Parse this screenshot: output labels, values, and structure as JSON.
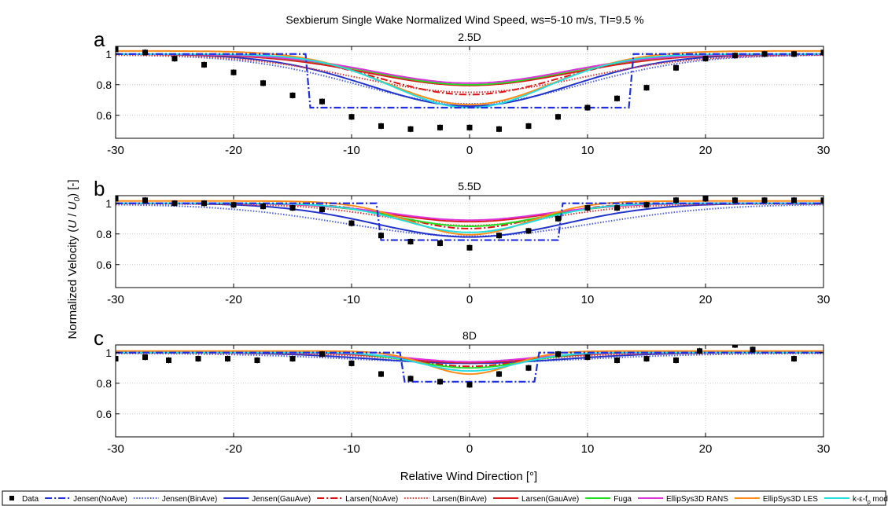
{
  "figure": {
    "title": "Sexbierum Single Wake Normalized Wind Speed, ws=5-10 m/s, TI=9.5 %",
    "ylabel_prefix": "Normalized Velocity (",
    "ylabel_u": "U",
    "ylabel_sep": " / ",
    "ylabel_u0": "U",
    "ylabel_u0_sub": "0",
    "ylabel_suffix": ") [-]",
    "xlabel": "Relative Wind Direction [°]"
  },
  "legend": [
    {
      "key": "data",
      "label": "Data",
      "color": "#000000",
      "style": "marker"
    },
    {
      "key": "jensen_noave",
      "label": "Jensen(NoAve)",
      "color": "#1f2fe0",
      "style": "dashdot"
    },
    {
      "key": "jensen_binave",
      "label": "Jensen(BinAve)",
      "color": "#4a5cf0",
      "style": "dotted"
    },
    {
      "key": "jensen_gauave",
      "label": "Jensen(GauAve)",
      "color": "#2233cc",
      "style": "solid"
    },
    {
      "key": "larsen_noave",
      "label": "Larsen(NoAve)",
      "color": "#dd1111",
      "style": "dashdot"
    },
    {
      "key": "larsen_binave",
      "label": "Larsen(BinAve)",
      "color": "#e83030",
      "style": "dotted"
    },
    {
      "key": "larsen_gauave",
      "label": "Larsen(GauAve)",
      "color": "#dd1a1a",
      "style": "solid"
    },
    {
      "key": "fuga",
      "label": "Fuga",
      "color": "#22dd22",
      "style": "solid"
    },
    {
      "key": "ellipsys_rans",
      "label": "EllipSys3D RANS",
      "color": "#dd33dd",
      "style": "solid"
    },
    {
      "key": "ellipsys_les",
      "label": "EllipSys3D LES",
      "color": "#ff8c1a",
      "style": "solid"
    },
    {
      "key": "keps",
      "label": "k-ε-f",
      "label_sub": "p",
      "label_tail": " model",
      "color": "#22dddd",
      "style": "solid"
    }
  ],
  "chart_data": [
    {
      "type": "line",
      "panel_letter": "a",
      "title": "2.5D",
      "xlim": [
        -30,
        30
      ],
      "ylim": [
        0.45,
        1.05
      ],
      "xticks": [
        -30,
        -20,
        -10,
        0,
        10,
        20,
        30
      ],
      "xtick_labels": [
        "-30",
        "-20",
        "-10",
        "0",
        "10",
        "20",
        "30"
      ],
      "yticks": [
        0.6,
        0.8,
        1.0
      ],
      "ytick_labels": [
        "0.6",
        "0.8",
        "1"
      ],
      "grid": true,
      "data_points": {
        "x": [
          -30,
          -27.5,
          -25,
          -22.5,
          -20,
          -17.5,
          -15,
          -12.5,
          -10,
          -7.5,
          -5,
          -2.5,
          0,
          2.5,
          5,
          7.5,
          10,
          12.5,
          15,
          17.5,
          20,
          22.5,
          25,
          27.5,
          30
        ],
        "y": [
          1.03,
          1.01,
          0.97,
          0.93,
          0.88,
          0.81,
          0.73,
          0.69,
          0.59,
          0.53,
          0.51,
          0.52,
          0.52,
          0.51,
          0.53,
          0.59,
          0.65,
          0.71,
          0.78,
          0.91,
          0.97,
          0.99,
          1.0,
          1.0,
          1.01
        ]
      },
      "step": {
        "base": 1.0,
        "deficit": 0.35,
        "half_width": 13.9
      },
      "series": [
        {
          "key": "jensen_binave",
          "base": 0.995,
          "deficit": 0.32,
          "width": 9.5
        },
        {
          "key": "jensen_gauave",
          "base": 1.0,
          "deficit": 0.34,
          "width": 8.5
        },
        {
          "key": "larsen_noave",
          "base": 1.0,
          "deficit": 0.265,
          "width": 7.5
        },
        {
          "key": "larsen_binave",
          "base": 0.995,
          "deficit": 0.245,
          "width": 9.5
        },
        {
          "key": "larsen_gauave",
          "base": 1.0,
          "deficit": 0.205,
          "width": 8.5
        },
        {
          "key": "fuga",
          "base": 1.0,
          "deficit": 0.2,
          "width": 8.0
        },
        {
          "key": "ellipsys_rans",
          "base": 1.0,
          "deficit": 0.19,
          "width": 8.0
        },
        {
          "key": "ellipsys_les",
          "base": 1.02,
          "deficit": 0.35,
          "width": 7.0
        },
        {
          "key": "keps",
          "base": 1.0,
          "deficit": 0.35,
          "width": 6.5
        }
      ]
    },
    {
      "type": "line",
      "panel_letter": "b",
      "title": "5.5D",
      "xlim": [
        -30,
        30
      ],
      "ylim": [
        0.45,
        1.05
      ],
      "xticks": [
        -30,
        -20,
        -10,
        0,
        10,
        20,
        30
      ],
      "xtick_labels": [
        "-30",
        "-20",
        "-10",
        "0",
        "10",
        "20",
        "30"
      ],
      "yticks": [
        0.6,
        0.8,
        1.0
      ],
      "ytick_labels": [
        "0.6",
        "0.8",
        "1"
      ],
      "grid": true,
      "data_points": {
        "x": [
          -30,
          -27.5,
          -25,
          -22.5,
          -20,
          -17.5,
          -15,
          -12.5,
          -10,
          -7.5,
          -5,
          -2.5,
          0,
          2.5,
          5,
          7.5,
          10,
          12.5,
          15,
          17.5,
          20,
          22.5,
          25,
          27.5,
          30
        ],
        "y": [
          1.03,
          1.02,
          1.0,
          1.0,
          0.99,
          0.98,
          0.97,
          0.96,
          0.87,
          0.79,
          0.75,
          0.74,
          0.71,
          0.79,
          0.82,
          0.9,
          0.97,
          0.97,
          0.99,
          1.02,
          1.03,
          1.02,
          1.02,
          1.02,
          1.02
        ]
      },
      "step": {
        "base": 1.0,
        "deficit": 0.24,
        "half_width": 7.9
      },
      "series": [
        {
          "key": "jensen_binave",
          "base": 0.995,
          "deficit": 0.21,
          "width": 10.5
        },
        {
          "key": "jensen_gauave",
          "base": 1.0,
          "deficit": 0.22,
          "width": 8.0
        },
        {
          "key": "larsen_noave",
          "base": 1.0,
          "deficit": 0.165,
          "width": 5.5
        },
        {
          "key": "larsen_binave",
          "base": 0.995,
          "deficit": 0.14,
          "width": 7.0
        },
        {
          "key": "larsen_gauave",
          "base": 1.0,
          "deficit": 0.12,
          "width": 6.5
        },
        {
          "key": "fuga",
          "base": 1.0,
          "deficit": 0.15,
          "width": 6.0
        },
        {
          "key": "ellipsys_rans",
          "base": 1.0,
          "deficit": 0.11,
          "width": 6.5
        },
        {
          "key": "ellipsys_les",
          "base": 1.015,
          "deficit": 0.22,
          "width": 5.0
        },
        {
          "key": "keps",
          "base": 1.0,
          "deficit": 0.19,
          "width": 5.5
        }
      ]
    },
    {
      "type": "line",
      "panel_letter": "c",
      "title": "8D",
      "xlim": [
        -30,
        30
      ],
      "ylim": [
        0.45,
        1.05
      ],
      "xticks": [
        -30,
        -20,
        -10,
        0,
        10,
        20,
        30
      ],
      "xtick_labels": [
        "-30",
        "-20",
        "-10",
        "0",
        "10",
        "20",
        "30"
      ],
      "yticks": [
        0.6,
        0.8,
        1.0
      ],
      "ytick_labels": [
        "0.6",
        "0.8",
        "1"
      ],
      "grid": true,
      "data_points": {
        "x": [
          -30,
          -27.5,
          -25.5,
          -23,
          -20.5,
          -18,
          -15,
          -12.5,
          -10,
          -7.5,
          -5,
          -2.5,
          0,
          2.5,
          5,
          7.5,
          10,
          12.5,
          15,
          17.5,
          19.5,
          22.5,
          24,
          27.5
        ],
        "y": [
          0.96,
          0.97,
          0.95,
          0.96,
          0.96,
          0.95,
          0.96,
          0.99,
          0.93,
          0.86,
          0.83,
          0.81,
          0.79,
          0.86,
          0.9,
          0.99,
          0.97,
          0.95,
          0.96,
          0.95,
          1.01,
          1.05,
          1.02,
          0.96
        ]
      },
      "step": {
        "base": 1.0,
        "deficit": 0.19,
        "half_width": 5.9
      },
      "series": [
        {
          "key": "jensen_binave",
          "base": 0.995,
          "deficit": 0.06,
          "width": 10.0
        },
        {
          "key": "jensen_gauave",
          "base": 1.0,
          "deficit": 0.07,
          "width": 8.0
        },
        {
          "key": "larsen_noave",
          "base": 1.0,
          "deficit": 0.09,
          "width": 4.5
        },
        {
          "key": "larsen_binave",
          "base": 0.995,
          "deficit": 0.06,
          "width": 6.0
        },
        {
          "key": "larsen_gauave",
          "base": 1.0,
          "deficit": 0.065,
          "width": 5.5
        },
        {
          "key": "fuga",
          "base": 1.0,
          "deficit": 0.1,
          "width": 4.5
        },
        {
          "key": "ellipsys_rans",
          "base": 1.0,
          "deficit": 0.06,
          "width": 5.0
        },
        {
          "key": "ellipsys_les",
          "base": 1.01,
          "deficit": 0.15,
          "width": 3.5
        },
        {
          "key": "keps",
          "base": 1.0,
          "deficit": 0.12,
          "width": 4.0
        }
      ]
    }
  ]
}
